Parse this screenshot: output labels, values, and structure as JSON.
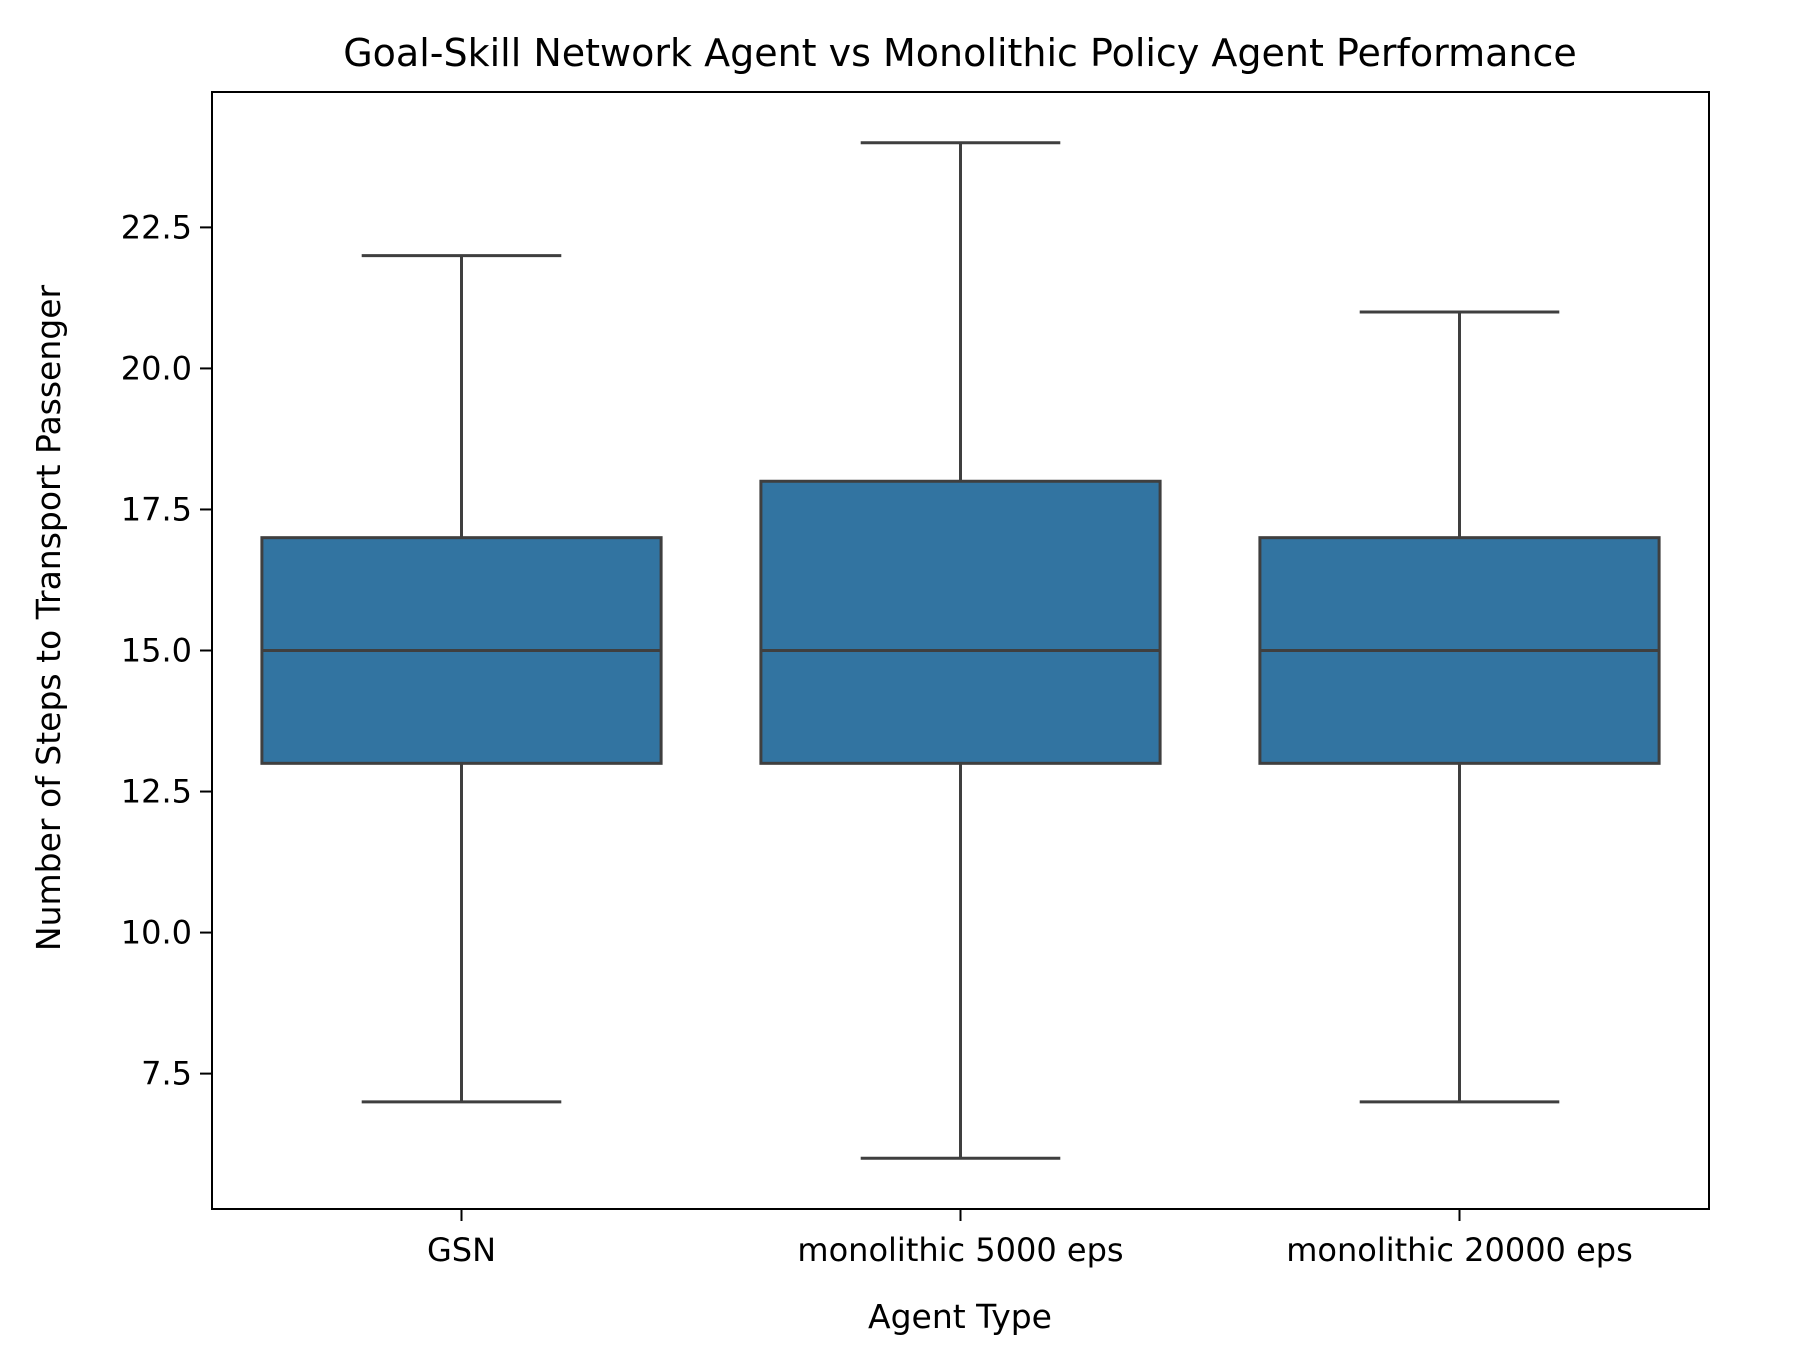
{
  "chart_data": {
    "type": "box",
    "title": "Goal-Skill Network Agent vs Monolithic Policy Agent Performance",
    "xlabel": "Agent Type",
    "ylabel": "Number of Steps to Transport Passenger",
    "categories": [
      "GSN",
      "monolithic 5000 eps",
      "monolithic 20000 eps"
    ],
    "boxes": [
      {
        "category": "GSN",
        "whisker_low": 7,
        "q1": 13,
        "median": 15,
        "q3": 17,
        "whisker_high": 22
      },
      {
        "category": "monolithic 5000 eps",
        "whisker_low": 6,
        "q1": 13,
        "median": 15,
        "q3": 18,
        "whisker_high": 24
      },
      {
        "category": "monolithic 20000 eps",
        "whisker_low": 7,
        "q1": 13,
        "median": 15,
        "q3": 17,
        "whisker_high": 21
      }
    ],
    "ylim": [
      5.1,
      24.9
    ],
    "yticks": [
      7.5,
      10.0,
      12.5,
      15.0,
      17.5,
      20.0,
      22.5
    ],
    "ytick_labels": [
      "7.5",
      "10.0",
      "12.5",
      "15.0",
      "17.5",
      "20.0",
      "22.5"
    ],
    "grid": false,
    "colors": {
      "box_fill": "#3274a1",
      "box_edge": "#3f3f3f"
    }
  }
}
